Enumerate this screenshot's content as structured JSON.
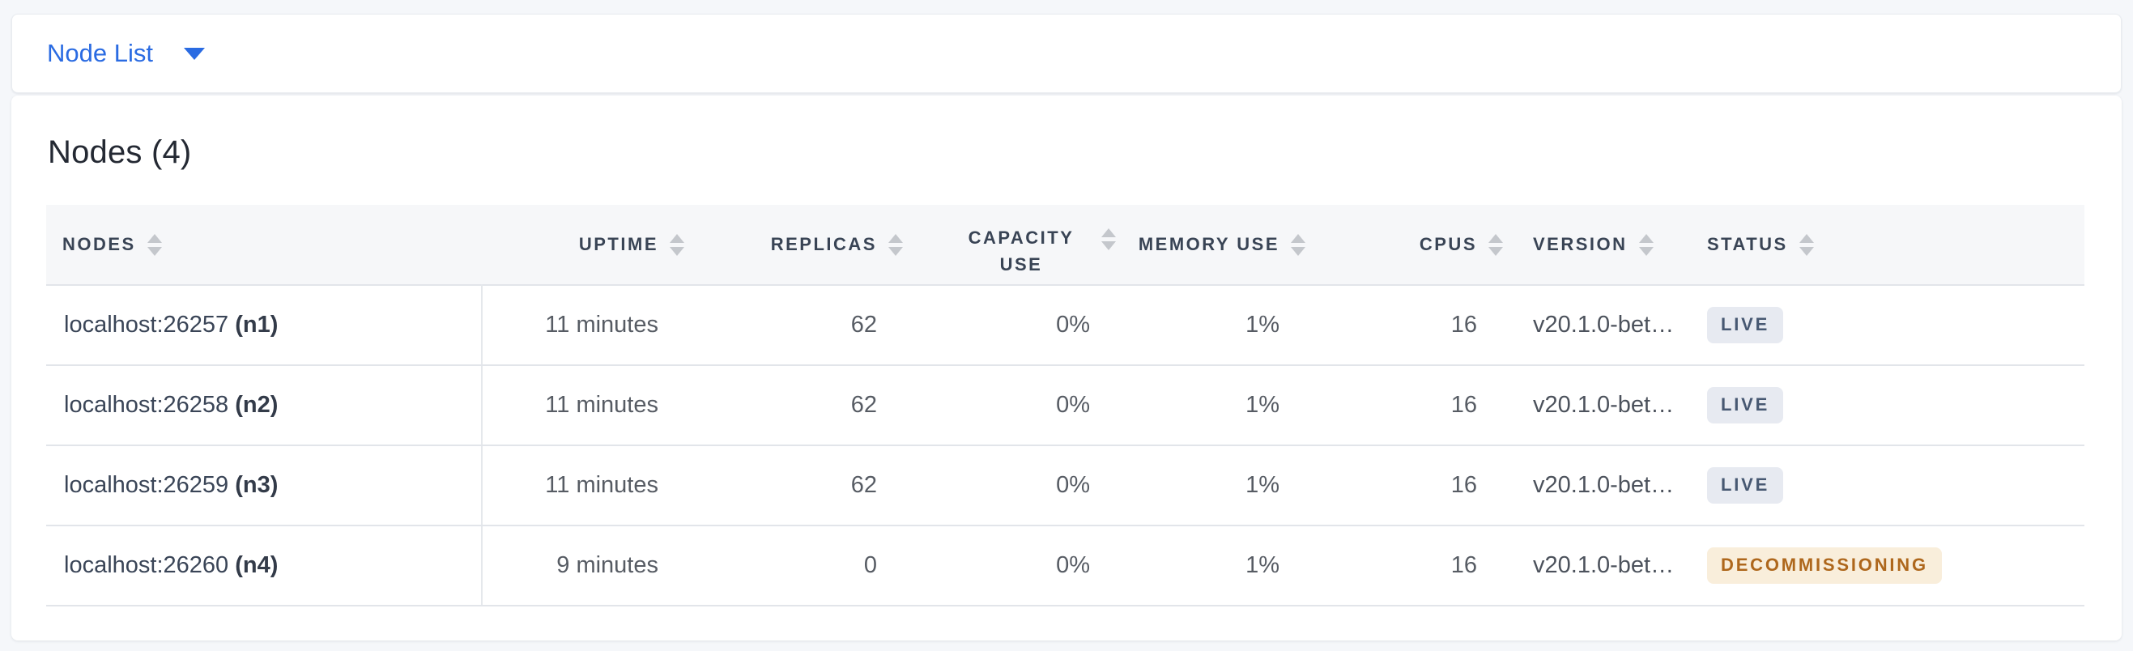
{
  "view_selector": {
    "label": "Node List"
  },
  "section": {
    "heading": "Nodes (4)"
  },
  "table": {
    "columns": [
      {
        "id": "nodes",
        "label": "NODES"
      },
      {
        "id": "uptime",
        "label": "UPTIME"
      },
      {
        "id": "replicas",
        "label": "REPLICAS"
      },
      {
        "id": "capacity_use",
        "label": "CAPACITY USE"
      },
      {
        "id": "memory_use",
        "label": "MEMORY USE"
      },
      {
        "id": "cpus",
        "label": "CPUS"
      },
      {
        "id": "version",
        "label": "VERSION"
      },
      {
        "id": "status",
        "label": "STATUS"
      }
    ],
    "rows": [
      {
        "address": "localhost:26257",
        "node_id": "(n1)",
        "uptime": "11 minutes",
        "replicas": "62",
        "capacity_use": "0%",
        "memory_use": "1%",
        "cpus": "16",
        "version": "v20.1.0-bet…",
        "status": "LIVE",
        "status_type": "live"
      },
      {
        "address": "localhost:26258",
        "node_id": "(n2)",
        "uptime": "11 minutes",
        "replicas": "62",
        "capacity_use": "0%",
        "memory_use": "1%",
        "cpus": "16",
        "version": "v20.1.0-bet…",
        "status": "LIVE",
        "status_type": "live"
      },
      {
        "address": "localhost:26259",
        "node_id": "(n3)",
        "uptime": "11 minutes",
        "replicas": "62",
        "capacity_use": "0%",
        "memory_use": "1%",
        "cpus": "16",
        "version": "v20.1.0-bet…",
        "status": "LIVE",
        "status_type": "live"
      },
      {
        "address": "localhost:26260",
        "node_id": "(n4)",
        "uptime": "9 minutes",
        "replicas": "0",
        "capacity_use": "0%",
        "memory_use": "1%",
        "cpus": "16",
        "version": "v20.1.0-bet…",
        "status": "DECOMMISSIONING",
        "status_type": "decommissioning"
      }
    ]
  },
  "colors": {
    "accent_blue": "#2A6BE2",
    "status_live_bg": "#E7EAF1",
    "status_live_text": "#475872",
    "status_decommissioning_bg": "#F9EEDB",
    "status_decommissioning_text": "#AE671C"
  }
}
